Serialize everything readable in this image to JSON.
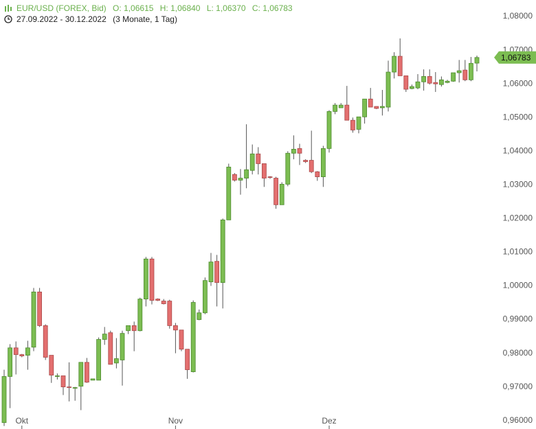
{
  "header": {
    "symbol": "EUR/USD (FOREX, Bid)",
    "ohlc": [
      "O: 1,06615",
      "H: 1,06840",
      "L: 1,06370",
      "C: 1,06783"
    ],
    "range": "27.09.2022 - 30.12.2022",
    "period": "(3 Monate, 1 Tag)"
  },
  "chart_data": {
    "type": "candlestick",
    "categories": [
      null,
      null,
      null,
      "Okt",
      null,
      null,
      null,
      null,
      null,
      null,
      null,
      null,
      null,
      null,
      null,
      null,
      null,
      null,
      null,
      null,
      null,
      null,
      null,
      null,
      null,
      null,
      null,
      null,
      null,
      "Nov",
      null,
      null,
      null,
      null,
      null,
      null,
      null,
      null,
      null,
      null,
      null,
      null,
      null,
      null,
      null,
      null,
      null,
      null,
      null,
      null,
      null,
      null,
      null,
      null,
      null,
      "Dez",
      null,
      null,
      null,
      null,
      null,
      null,
      null,
      null,
      null,
      null,
      null,
      null,
      null,
      null,
      null,
      null,
      null,
      null,
      null,
      null,
      null,
      null,
      null,
      null,
      null
    ],
    "open": [
      0.9594,
      0.9731,
      0.9816,
      0.9796,
      0.9794,
      0.9818,
      0.9982,
      0.9882,
      0.9794,
      0.9733,
      0.9733,
      0.97,
      0.9698,
      0.9702,
      0.9773,
      0.972,
      0.972,
      0.9841,
      0.9861,
      0.9771,
      0.978,
      0.9867,
      0.9882,
      0.9867,
      0.9961,
      1.008,
      0.9961,
      0.9955,
      0.9955,
      0.9882,
      0.9869,
      0.9812,
      0.9745,
      0.99,
      0.992,
      1.0012,
      1.0073,
      1.001,
      1.0196,
      1.0331,
      1.0314,
      1.032,
      1.0343,
      1.0392,
      1.0363,
      1.0324,
      1.032,
      1.0241,
      1.0302,
      1.0394,
      1.0408,
      1.0373,
      1.0373,
      1.0339,
      1.0324,
      1.0408,
      1.0518,
      1.0529,
      1.0537,
      1.0492,
      1.0465,
      1.0502,
      1.0555,
      1.0533,
      1.0529,
      1.0531,
      1.0635,
      1.0682,
      1.0624,
      1.0586,
      1.0588,
      1.0606,
      1.0622,
      1.0604,
      1.0598,
      1.0604,
      1.0608,
      1.0633,
      1.0641,
      1.0612,
      1.06615
    ],
    "high": [
      0.9751,
      0.9827,
      0.9835,
      0.9798,
      0.9837,
      0.9994,
      0.9994,
      0.9886,
      0.9794,
      0.974,
      0.9733,
      0.9773,
      0.97,
      0.9773,
      0.9786,
      0.9724,
      0.9847,
      0.9878,
      0.9867,
      0.9845,
      0.9867,
      0.9882,
      0.9894,
      0.9965,
      1.0086,
      1.0086,
      0.9963,
      0.9961,
      0.9959,
      0.989,
      0.9869,
      0.9812,
      0.9957,
      0.993,
      1.0025,
      1.0098,
      1.0092,
      1.02,
      1.0363,
      1.0335,
      1.0347,
      1.048,
      1.042,
      1.0412,
      1.0363,
      1.0326,
      1.0324,
      1.0308,
      1.04,
      1.0447,
      1.0422,
      1.0376,
      1.0461,
      1.0341,
      1.0416,
      1.0522,
      1.0543,
      1.0543,
      1.0594,
      1.05,
      1.0502,
      1.0555,
      1.0588,
      1.0533,
      1.0582,
      1.0669,
      1.0694,
      1.0735,
      1.0624,
      1.0598,
      1.0629,
      1.0643,
      1.0643,
      1.0635,
      1.0622,
      1.0612,
      1.0633,
      1.0671,
      1.0671,
      1.068,
      1.0684
    ],
    "low": [
      0.9584,
      0.9637,
      0.9737,
      0.9788,
      0.9751,
      0.9806,
      0.9878,
      0.978,
      0.9712,
      0.9722,
      0.9676,
      0.9657,
      0.9659,
      0.9631,
      0.9712,
      0.972,
      0.972,
      0.9825,
      0.9767,
      0.9755,
      0.9704,
      0.9857,
      0.9806,
      0.9865,
      0.9939,
      0.9945,
      0.9955,
      0.9945,
      0.9873,
      0.98,
      0.9806,
      0.9724,
      0.9743,
      0.9898,
      0.9916,
      1.0,
      0.9939,
      0.9933,
      1.0196,
      1.031,
      1.0271,
      1.029,
      1.0331,
      1.0331,
      1.0294,
      1.0318,
      1.0229,
      1.0241,
      1.0296,
      1.0376,
      1.0359,
      1.0365,
      1.0335,
      1.0312,
      1.0294,
      1.0396,
      1.051,
      1.0529,
      1.0492,
      1.0455,
      1.0453,
      1.0482,
      1.0531,
      1.0525,
      1.0506,
      1.0518,
      1.0616,
      1.0624,
      1.0576,
      1.0584,
      1.0584,
      1.058,
      1.0598,
      1.0576,
      1.0592,
      1.0602,
      1.0606,
      1.0604,
      1.0608,
      1.0608,
      1.0637
    ],
    "close": [
      0.9731,
      0.9816,
      0.9796,
      0.9792,
      0.9816,
      0.9982,
      0.9882,
      0.9788,
      0.9735,
      0.9733,
      0.97,
      0.9698,
      0.9698,
      0.9773,
      0.9714,
      0.9724,
      0.9841,
      0.9857,
      0.9767,
      0.9784,
      0.9859,
      0.9882,
      0.9867,
      0.9961,
      1.008,
      0.9957,
      0.9957,
      0.9947,
      0.9882,
      0.9869,
      0.9812,
      0.9751,
      0.9951,
      0.992,
      1.0016,
      1.0071,
      1.001,
      1.0196,
      1.0353,
      1.0314,
      1.032,
      1.0345,
      1.0392,
      1.0363,
      1.032,
      1.0322,
      1.0241,
      1.0302,
      1.0394,
      1.0406,
      1.0394,
      1.0369,
      1.0339,
      1.0324,
      1.0408,
      1.0518,
      1.0537,
      1.0537,
      1.0492,
      1.0463,
      1.0502,
      1.0555,
      1.0531,
      1.0527,
      1.0533,
      1.0635,
      1.0682,
      1.0624,
      1.0584,
      1.0592,
      1.0606,
      1.0622,
      1.0602,
      1.06,
      1.0612,
      1.0608,
      1.0633,
      1.0639,
      1.0612,
      1.0661,
      1.06783
    ],
    "up_color": "#7cbd52",
    "down_color": "#e36f6f",
    "ylim": [
      0.9575,
      1.0845
    ],
    "yticks": [
      {
        "value": 0.96,
        "label": "0,96000"
      },
      {
        "value": 0.97,
        "label": "0,97000"
      },
      {
        "value": 0.98,
        "label": "0,98000"
      },
      {
        "value": 0.99,
        "label": "0,99000"
      },
      {
        "value": 1.0,
        "label": "1,00000"
      },
      {
        "value": 1.01,
        "label": "1,01000"
      },
      {
        "value": 1.02,
        "label": "1,02000"
      },
      {
        "value": 1.03,
        "label": "1,03000"
      },
      {
        "value": 1.04,
        "label": "1,04000"
      },
      {
        "value": 1.05,
        "label": "1,05000"
      },
      {
        "value": 1.06,
        "label": "1,06000"
      },
      {
        "value": 1.07,
        "label": "1,07000"
      },
      {
        "value": 1.08,
        "label": "1,08000"
      }
    ],
    "last_price": {
      "value": 1.06783,
      "label": "1,06783"
    },
    "grid": false
  }
}
